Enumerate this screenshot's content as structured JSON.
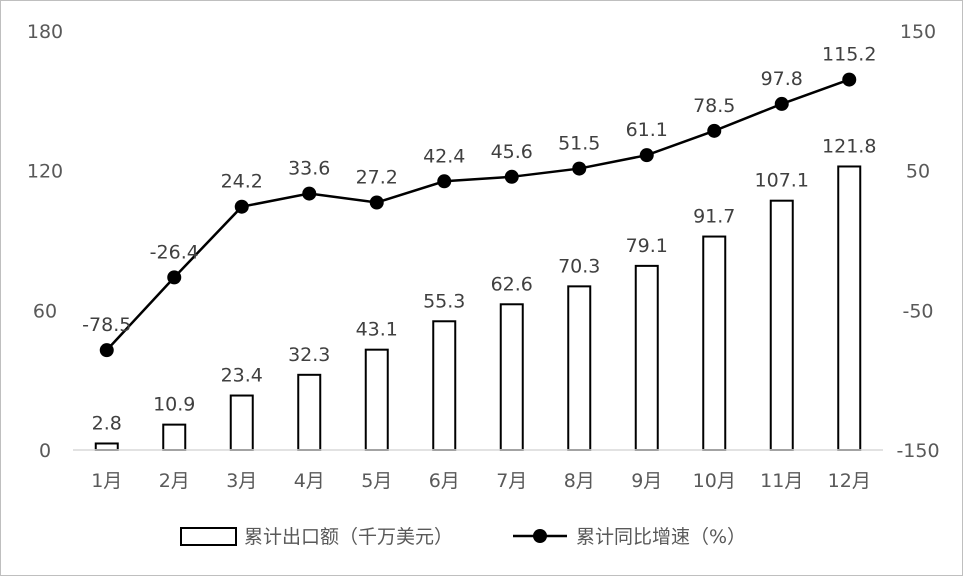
{
  "chart_data": {
    "type": "bar",
    "categories": [
      "1月",
      "2月",
      "3月",
      "4月",
      "5月",
      "6月",
      "7月",
      "8月",
      "9月",
      "10月",
      "11月",
      "12月"
    ],
    "series": [
      {
        "name": "累计出口额（千万美元）",
        "type": "bar",
        "axis": "left",
        "values": [
          2.8,
          10.9,
          23.4,
          32.3,
          43.1,
          55.3,
          62.6,
          70.3,
          79.1,
          91.7,
          107.1,
          121.8
        ]
      },
      {
        "name": "累计同比增速（%）",
        "type": "line",
        "axis": "right",
        "values": [
          -78.5,
          -26.4,
          24.2,
          33.6,
          27.2,
          42.4,
          45.6,
          51.5,
          61.1,
          78.5,
          97.8,
          115.2
        ]
      }
    ],
    "y_left": {
      "ylim": [
        0,
        180
      ],
      "ticks": [
        0,
        60,
        120,
        180
      ]
    },
    "y_right": {
      "ylim": [
        -150,
        150
      ],
      "ticks": [
        -150,
        -50,
        50,
        150
      ]
    },
    "grid": false,
    "legend_position": "bottom",
    "colors": {
      "bar_fill": "#ffffff",
      "bar_stroke": "#000000",
      "line": "#000000",
      "axis": "#d9d9d9",
      "text": "#595959"
    }
  }
}
